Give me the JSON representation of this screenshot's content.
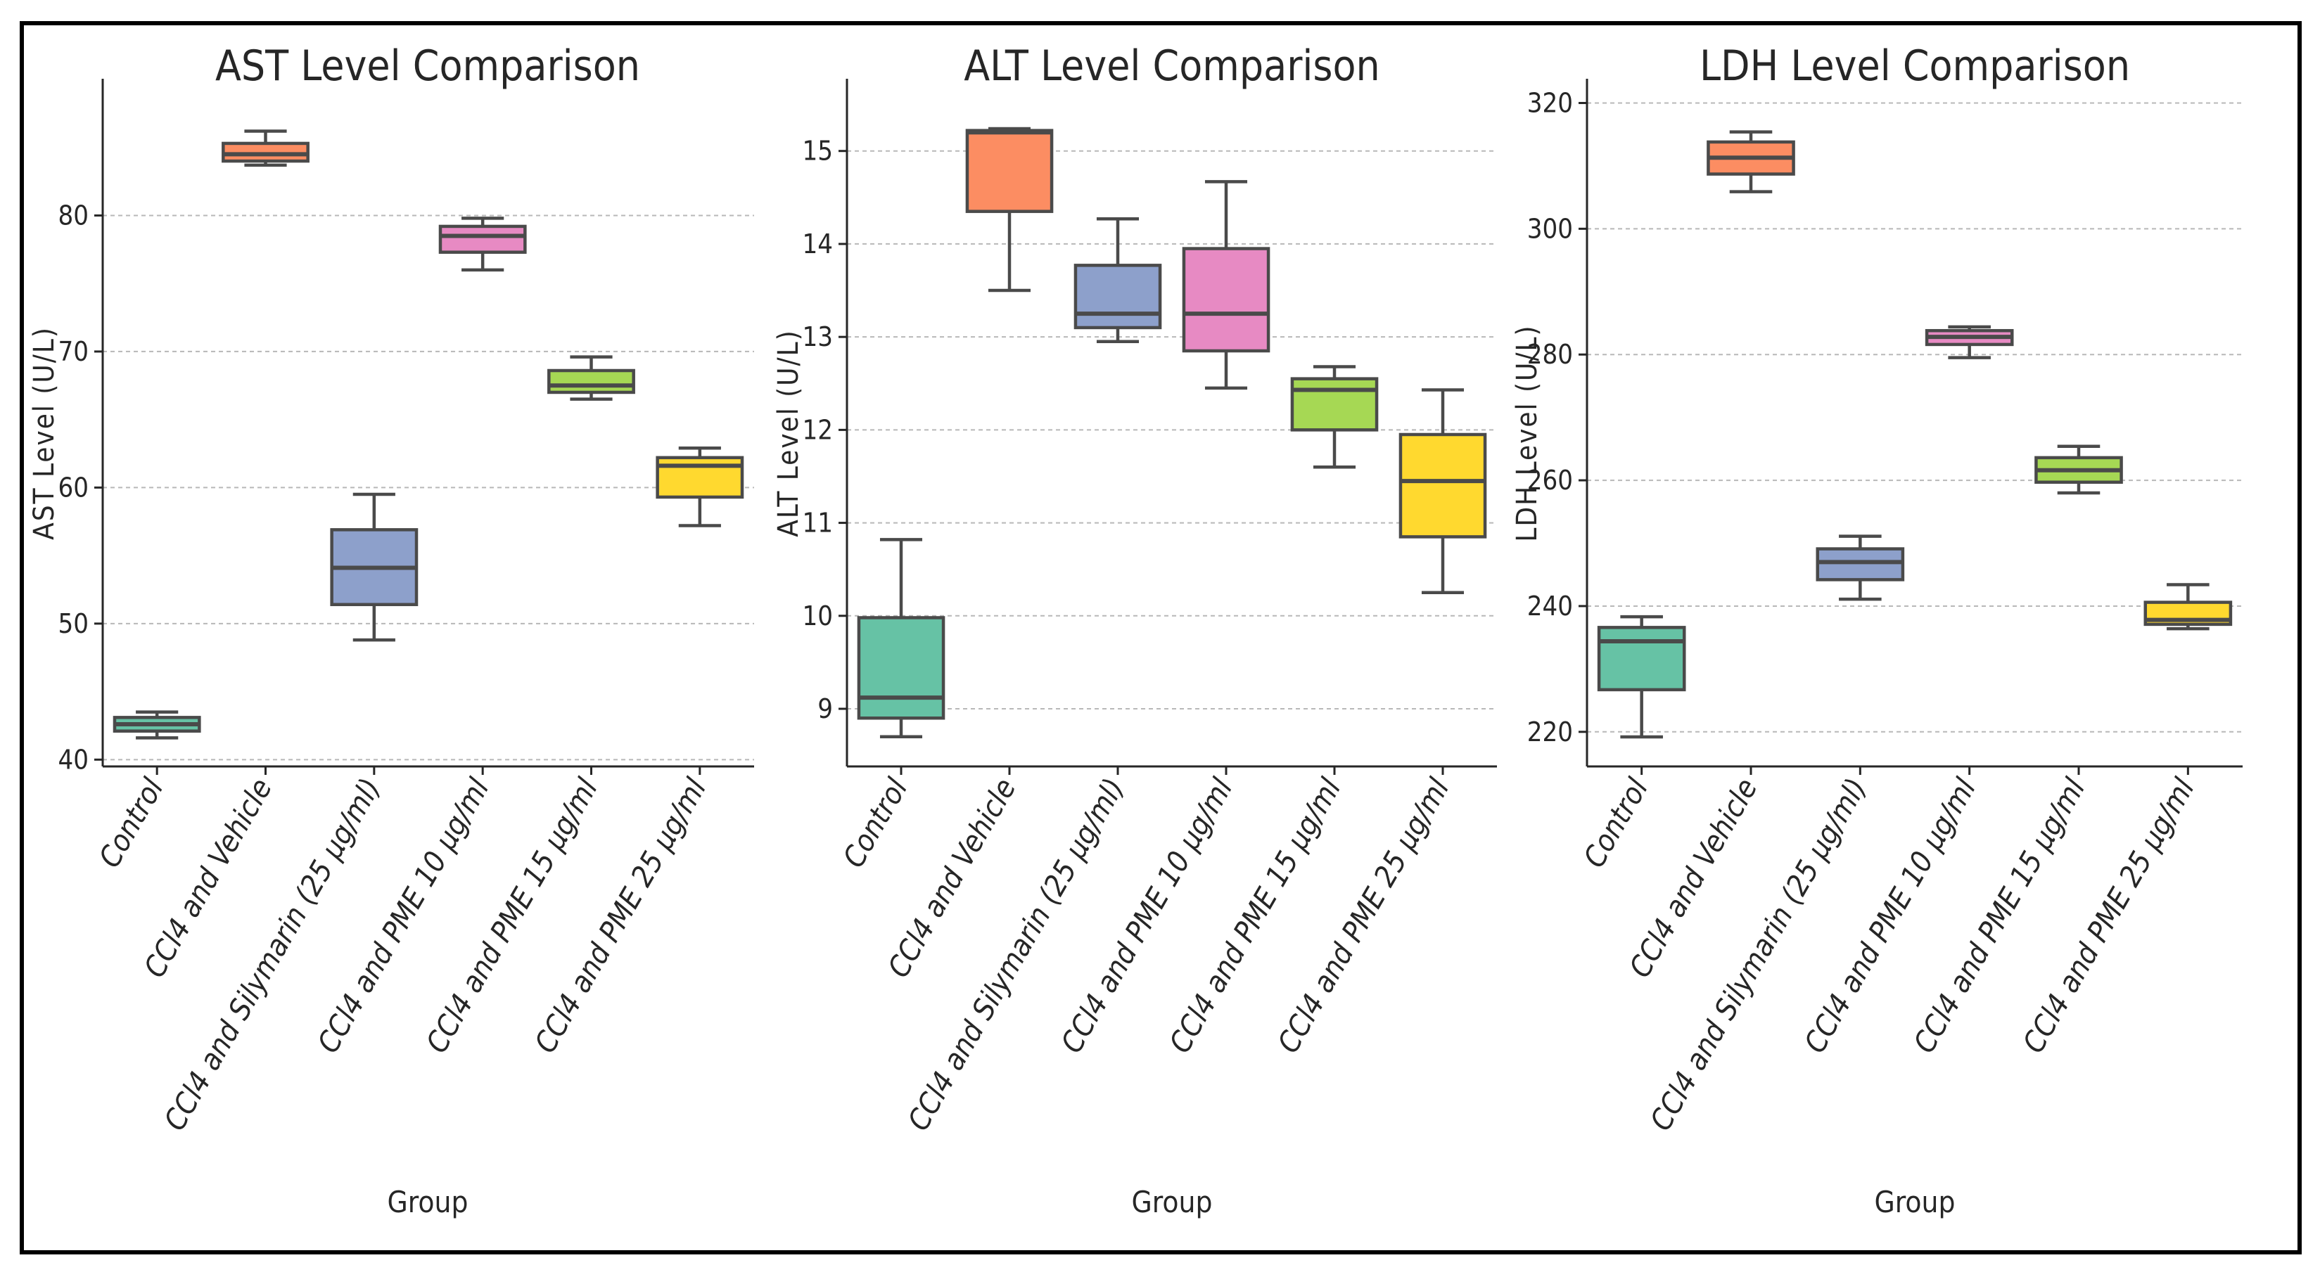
{
  "colors": {
    "Control": "#66c2a5",
    "CCl4 and Vehicle": "#fc8d62",
    "CCl4 and Silymarin (25 µg/ml)": "#8da0cb",
    "CCl4 and PME 10 µg/ml": "#e78ac3",
    "CCl4 and PME 15 µg/ml": "#a6d854",
    "CCl4 and PME 25 µg/ml": "#ffd92f"
  },
  "chart_data": [
    {
      "type": "box",
      "title": "AST Level Comparison",
      "xlabel": "Group",
      "ylabel": "AST Level (U/L)",
      "ylim": [
        39.5,
        88.5
      ],
      "yticks": [
        40,
        50,
        60,
        70,
        80
      ],
      "grid": true,
      "categories": [
        "Control",
        "CCl4 and Vehicle",
        "CCl4 and Silymarin (25 µg/ml)",
        "CCl4 and PME 10 µg/ml",
        "CCl4 and PME 15 µg/ml",
        "CCl4 and PME 25 µg/ml"
      ],
      "boxes": [
        {
          "min": 41.6,
          "q1": 42.1,
          "median": 42.6,
          "q3": 43.1,
          "max": 43.5
        },
        {
          "min": 83.7,
          "q1": 84.0,
          "median": 84.5,
          "q3": 85.3,
          "max": 86.2
        },
        {
          "min": 48.8,
          "q1": 51.4,
          "median": 54.1,
          "q3": 56.9,
          "max": 59.5
        },
        {
          "min": 76.0,
          "q1": 77.3,
          "median": 78.5,
          "q3": 79.2,
          "max": 79.8
        },
        {
          "min": 66.5,
          "q1": 67.0,
          "median": 67.5,
          "q3": 68.6,
          "max": 69.6
        },
        {
          "min": 57.2,
          "q1": 59.3,
          "median": 61.6,
          "q3": 62.2,
          "max": 62.9
        }
      ]
    },
    {
      "type": "box",
      "title": "ALT Level Comparison",
      "xlabel": "Group",
      "ylabel": "ALT Level (U/L)",
      "ylim": [
        8.38,
        15.55
      ],
      "yticks": [
        9,
        10,
        11,
        12,
        13,
        14,
        15
      ],
      "grid": true,
      "categories": [
        "Control",
        "CCl4 and Vehicle",
        "CCl4 and Silymarin (25 µg/ml)",
        "CCl4 and PME 10 µg/ml",
        "CCl4 and PME 15 µg/ml",
        "CCl4 and PME 25 µg/ml"
      ],
      "boxes": [
        {
          "min": 8.7,
          "q1": 8.9,
          "median": 9.12,
          "q3": 9.98,
          "max": 10.82
        },
        {
          "min": 13.5,
          "q1": 14.35,
          "median": 15.2,
          "q3": 15.22,
          "max": 15.24
        },
        {
          "min": 12.95,
          "q1": 13.1,
          "median": 13.25,
          "q3": 13.77,
          "max": 14.27
        },
        {
          "min": 12.45,
          "q1": 12.85,
          "median": 13.25,
          "q3": 13.95,
          "max": 14.67
        },
        {
          "min": 11.6,
          "q1": 12.0,
          "median": 12.43,
          "q3": 12.55,
          "max": 12.68
        },
        {
          "min": 10.25,
          "q1": 10.85,
          "median": 11.45,
          "q3": 11.95,
          "max": 12.43
        }
      ]
    },
    {
      "type": "box",
      "title": "LDH Level Comparison",
      "xlabel": "Group",
      "ylabel": "LDH Level (U/L)",
      "ylim": [
        214.5,
        320.5
      ],
      "yticks": [
        220,
        240,
        260,
        280,
        300,
        320
      ],
      "grid": true,
      "categories": [
        "Control",
        "CCl4 and Vehicle",
        "CCl4 and Silymarin (25 µg/ml)",
        "CCl4 and PME 10 µg/ml",
        "CCl4 and PME 15 µg/ml",
        "CCl4 and PME 25 µg/ml"
      ],
      "boxes": [
        {
          "min": 219.2,
          "q1": 226.7,
          "median": 234.4,
          "q3": 236.6,
          "max": 238.3
        },
        {
          "min": 305.9,
          "q1": 308.7,
          "median": 311.3,
          "q3": 313.8,
          "max": 315.4
        },
        {
          "min": 241.1,
          "q1": 244.2,
          "median": 247.0,
          "q3": 249.1,
          "max": 251.1
        },
        {
          "min": 279.5,
          "q1": 281.6,
          "median": 282.8,
          "q3": 283.8,
          "max": 284.4
        },
        {
          "min": 258.0,
          "q1": 259.7,
          "median": 261.6,
          "q3": 263.6,
          "max": 265.4
        },
        {
          "min": 236.4,
          "q1": 237.1,
          "median": 237.8,
          "q3": 240.6,
          "max": 243.4
        }
      ]
    }
  ]
}
